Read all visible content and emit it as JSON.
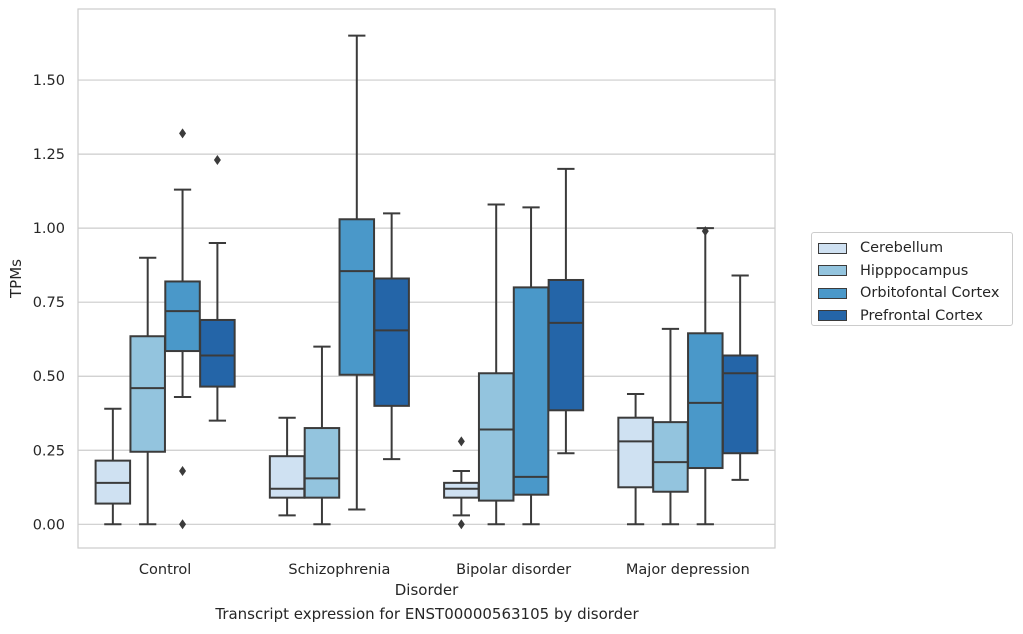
{
  "caption": "Transcript expression for ENST00000563105 by disorder",
  "chart_data": {
    "type": "boxplot",
    "xlabel": "Disorder",
    "ylabel": "TPMs",
    "ylim": [
      -0.08,
      1.74
    ],
    "yticks": [
      0.0,
      0.25,
      0.5,
      0.75,
      1.0,
      1.25,
      1.5
    ],
    "ytick_labels": [
      "0.00",
      "0.25",
      "0.50",
      "0.75",
      "1.00",
      "1.25",
      "1.50"
    ],
    "grid": "horizontal",
    "legend_position": "right",
    "categories": [
      "Control",
      "Schizophrenia",
      "Bipolar disorder",
      "Major depression"
    ],
    "series": [
      {
        "name": "Cerebellum",
        "color": "#cfe1f2",
        "boxes": [
          {
            "whislo": 0.0,
            "q1": 0.07,
            "med": 0.14,
            "q3": 0.215,
            "whishi": 0.39,
            "fliers": []
          },
          {
            "whislo": 0.03,
            "q1": 0.09,
            "med": 0.12,
            "q3": 0.23,
            "whishi": 0.36,
            "fliers": []
          },
          {
            "whislo": 0.03,
            "q1": 0.09,
            "med": 0.12,
            "q3": 0.14,
            "whishi": 0.18,
            "fliers": [
              0.0,
              0.28
            ]
          },
          {
            "whislo": 0.0,
            "q1": 0.125,
            "med": 0.28,
            "q3": 0.36,
            "whishi": 0.44,
            "fliers": []
          }
        ]
      },
      {
        "name": "Hipppocampus",
        "color": "#93c4de",
        "boxes": [
          {
            "whislo": 0.0,
            "q1": 0.245,
            "med": 0.46,
            "q3": 0.635,
            "whishi": 0.9,
            "fliers": []
          },
          {
            "whislo": 0.0,
            "q1": 0.09,
            "med": 0.155,
            "q3": 0.325,
            "whishi": 0.6,
            "fliers": []
          },
          {
            "whislo": 0.0,
            "q1": 0.08,
            "med": 0.32,
            "q3": 0.51,
            "whishi": 1.08,
            "fliers": []
          },
          {
            "whislo": 0.0,
            "q1": 0.11,
            "med": 0.21,
            "q3": 0.345,
            "whishi": 0.66,
            "fliers": []
          }
        ]
      },
      {
        "name": "Orbitofontal Cortex",
        "color": "#4a98c9",
        "boxes": [
          {
            "whislo": 0.43,
            "q1": 0.585,
            "med": 0.72,
            "q3": 0.82,
            "whishi": 1.13,
            "fliers": [
              0.0,
              0.18,
              1.32
            ]
          },
          {
            "whislo": 0.05,
            "q1": 0.505,
            "med": 0.855,
            "q3": 1.03,
            "whishi": 1.65,
            "fliers": []
          },
          {
            "whislo": 0.0,
            "q1": 0.1,
            "med": 0.16,
            "q3": 0.8,
            "whishi": 1.07,
            "fliers": []
          },
          {
            "whislo": 0.0,
            "q1": 0.19,
            "med": 0.41,
            "q3": 0.645,
            "whishi": 1.0,
            "fliers": [
              0.99
            ]
          }
        ]
      },
      {
        "name": "Prefrontal Cortex",
        "color": "#2465a8",
        "boxes": [
          {
            "whislo": 0.35,
            "q1": 0.465,
            "med": 0.57,
            "q3": 0.69,
            "whishi": 0.95,
            "fliers": [
              1.23
            ]
          },
          {
            "whislo": 0.22,
            "q1": 0.4,
            "med": 0.655,
            "q3": 0.83,
            "whishi": 1.05,
            "fliers": []
          },
          {
            "whislo": 0.24,
            "q1": 0.385,
            "med": 0.68,
            "q3": 0.825,
            "whishi": 1.2,
            "fliers": []
          },
          {
            "whislo": 0.15,
            "q1": 0.24,
            "med": 0.51,
            "q3": 0.57,
            "whishi": 0.84,
            "fliers": []
          }
        ]
      }
    ]
  }
}
